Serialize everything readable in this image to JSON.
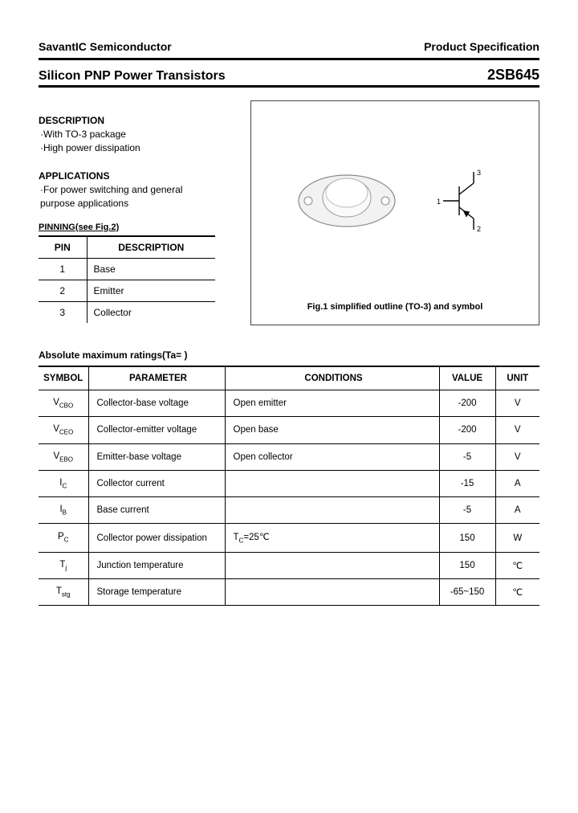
{
  "header": {
    "company": "SavantIC Semiconductor",
    "doc_type": "Product Specification"
  },
  "title": {
    "left": "Silicon PNP Power Transistors",
    "right": "2SB645"
  },
  "description": {
    "heading": "DESCRIPTION",
    "items": [
      "·With TO-3 package",
      "·High power dissipation"
    ]
  },
  "applications": {
    "heading": "APPLICATIONS",
    "items": [
      "·For power switching and general",
      "  purpose applications"
    ]
  },
  "pinning": {
    "caption": "PINNING(see Fig.2)",
    "columns": [
      "PIN",
      "DESCRIPTION"
    ],
    "rows": [
      [
        "1",
        "Base"
      ],
      [
        "2",
        "Emitter"
      ],
      [
        "3",
        "Collector"
      ]
    ]
  },
  "figure": {
    "caption": "Fig.1 simplified outline (TO-3) and symbol",
    "pin_labels": [
      "1",
      "2",
      "3"
    ]
  },
  "ratings": {
    "heading": "Absolute maximum ratings(Ta=  )",
    "columns": [
      "SYMBOL",
      "PARAMETER",
      "CONDITIONS",
      "VALUE",
      "UNIT"
    ],
    "rows": [
      {
        "symbol": "V",
        "sub": "CBO",
        "parameter": "Collector-base voltage",
        "conditions": "Open emitter",
        "value": "-200",
        "unit": "V"
      },
      {
        "symbol": "V",
        "sub": "CEO",
        "parameter": "Collector-emitter voltage",
        "conditions": "Open base",
        "value": "-200",
        "unit": "V"
      },
      {
        "symbol": "V",
        "sub": "EBO",
        "parameter": "Emitter-base voltage",
        "conditions": "Open collector",
        "value": "-5",
        "unit": "V"
      },
      {
        "symbol": "I",
        "sub": "C",
        "parameter": "Collector current",
        "conditions": "",
        "value": "-15",
        "unit": "A"
      },
      {
        "symbol": "I",
        "sub": "B",
        "parameter": "Base current",
        "conditions": "",
        "value": "-5",
        "unit": "A"
      },
      {
        "symbol": "P",
        "sub": "C",
        "parameter": "Collector power dissipation",
        "conditions": "T_C=25℃",
        "value": "150",
        "unit": "W"
      },
      {
        "symbol": "T",
        "sub": "j",
        "parameter": "Junction temperature",
        "conditions": "",
        "value": "150",
        "unit": "℃"
      },
      {
        "symbol": "T",
        "sub": "stg",
        "parameter": "Storage temperature",
        "conditions": "",
        "value": "-65~150",
        "unit": "℃"
      }
    ]
  },
  "colors": {
    "text": "#000000",
    "border": "#000000",
    "background": "#ffffff",
    "pkg_fill": "#eeeeee",
    "pkg_stroke": "#888888"
  }
}
